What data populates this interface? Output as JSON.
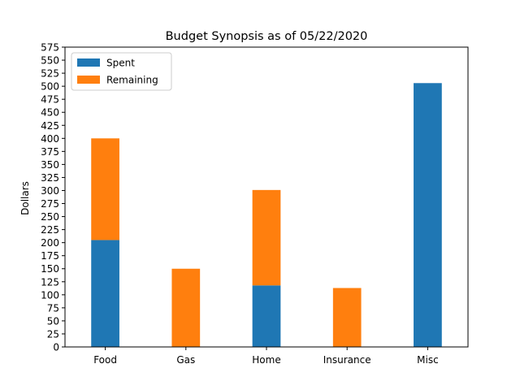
{
  "chart_data": {
    "type": "bar",
    "stacked": true,
    "title": "Budget Synopsis as of 05/22/2020",
    "xlabel": "",
    "ylabel": "Dollars",
    "categories": [
      "Food",
      "Gas",
      "Home",
      "Insurance",
      "Misc"
    ],
    "series": [
      {
        "name": "Spent",
        "color": "#1f77b4",
        "values": [
          205,
          0,
          118,
          0,
          506
        ]
      },
      {
        "name": "Remaining",
        "color": "#ff7f0e",
        "values": [
          195,
          150,
          183,
          113,
          0
        ]
      }
    ],
    "ylim": [
      0,
      575
    ],
    "yticks": [
      0,
      25,
      50,
      75,
      100,
      125,
      150,
      175,
      200,
      225,
      250,
      275,
      300,
      325,
      350,
      375,
      400,
      425,
      450,
      475,
      500,
      525,
      550,
      575
    ],
    "grid": false,
    "legend_position": "top-left"
  }
}
